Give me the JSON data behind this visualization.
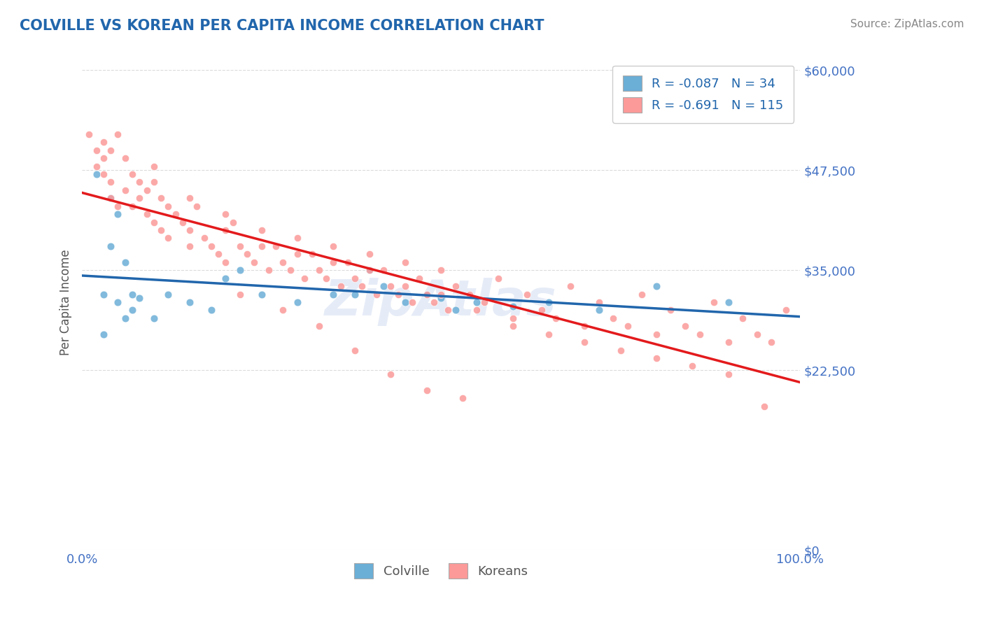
{
  "title": "COLVILLE VS KOREAN PER CAPITA INCOME CORRELATION CHART",
  "source_text": "Source: ZipAtlas.com",
  "xlabel": "",
  "ylabel": "Per Capita Income",
  "xlim": [
    0.0,
    1.0
  ],
  "ylim": [
    0,
    62000
  ],
  "yticks": [
    0,
    22500,
    35000,
    47500,
    60000
  ],
  "ytick_labels": [
    "$0",
    "$22,500",
    "$35,000",
    "$47,500",
    "$60,000"
  ],
  "xticks": [
    0.0,
    1.0
  ],
  "xtick_labels": [
    "0.0%",
    "100.0%"
  ],
  "colville_color": "#6baed6",
  "korean_color": "#fb9a99",
  "colville_line_color": "#2166ac",
  "korean_line_color": "#e31a1c",
  "R_colville": -0.087,
  "N_colville": 34,
  "R_korean": -0.691,
  "N_korean": 115,
  "title_color": "#2166ac",
  "axis_color": "#4472c4",
  "grid_color": "#cccccc",
  "colville_scatter_x": [
    0.02,
    0.04,
    0.03,
    0.05,
    0.06,
    0.04,
    0.03,
    0.05,
    0.07,
    0.06,
    0.08,
    0.07,
    0.1,
    0.12,
    0.15,
    0.18,
    0.2,
    0.22,
    0.25,
    0.3,
    0.35,
    0.38,
    0.4,
    0.42,
    0.45,
    0.48,
    0.5,
    0.52,
    0.55,
    0.6,
    0.65,
    0.72,
    0.8,
    0.9
  ],
  "colville_scatter_y": [
    47000,
    44000,
    32000,
    42000,
    29000,
    38000,
    27000,
    31000,
    30000,
    36000,
    31500,
    32000,
    29000,
    32000,
    31000,
    30000,
    34000,
    35000,
    32000,
    31000,
    32000,
    32000,
    35000,
    33000,
    31000,
    32000,
    31500,
    30000,
    31000,
    30500,
    31000,
    30000,
    33000,
    31000
  ],
  "korean_scatter_x": [
    0.01,
    0.02,
    0.02,
    0.03,
    0.03,
    0.03,
    0.04,
    0.04,
    0.04,
    0.05,
    0.05,
    0.06,
    0.06,
    0.07,
    0.07,
    0.08,
    0.08,
    0.09,
    0.09,
    0.1,
    0.1,
    0.11,
    0.11,
    0.12,
    0.12,
    0.13,
    0.14,
    0.15,
    0.15,
    0.16,
    0.17,
    0.18,
    0.19,
    0.2,
    0.2,
    0.21,
    0.22,
    0.23,
    0.24,
    0.25,
    0.26,
    0.27,
    0.28,
    0.29,
    0.3,
    0.31,
    0.32,
    0.33,
    0.34,
    0.35,
    0.36,
    0.37,
    0.38,
    0.39,
    0.4,
    0.41,
    0.42,
    0.43,
    0.44,
    0.45,
    0.46,
    0.47,
    0.48,
    0.49,
    0.5,
    0.51,
    0.52,
    0.54,
    0.56,
    0.58,
    0.6,
    0.62,
    0.64,
    0.66,
    0.68,
    0.7,
    0.72,
    0.74,
    0.76,
    0.78,
    0.8,
    0.82,
    0.84,
    0.86,
    0.88,
    0.9,
    0.92,
    0.94,
    0.96,
    0.98,
    0.1,
    0.15,
    0.2,
    0.25,
    0.3,
    0.35,
    0.4,
    0.45,
    0.5,
    0.55,
    0.6,
    0.65,
    0.7,
    0.75,
    0.8,
    0.85,
    0.9,
    0.95,
    0.22,
    0.28,
    0.33,
    0.38,
    0.43,
    0.48,
    0.53
  ],
  "korean_scatter_y": [
    52000,
    50000,
    48000,
    51000,
    49000,
    47000,
    50000,
    46000,
    44000,
    52000,
    43000,
    49000,
    45000,
    47000,
    43000,
    46000,
    44000,
    45000,
    42000,
    46000,
    41000,
    44000,
    40000,
    43000,
    39000,
    42000,
    41000,
    40000,
    38000,
    43000,
    39000,
    38000,
    37000,
    42000,
    36000,
    41000,
    38000,
    37000,
    36000,
    40000,
    35000,
    38000,
    36000,
    35000,
    39000,
    34000,
    37000,
    35000,
    34000,
    38000,
    33000,
    36000,
    34000,
    33000,
    37000,
    32000,
    35000,
    33000,
    32000,
    36000,
    31000,
    34000,
    32000,
    31000,
    35000,
    30000,
    33000,
    32000,
    31000,
    34000,
    29000,
    32000,
    30000,
    29000,
    33000,
    28000,
    31000,
    29000,
    28000,
    32000,
    27000,
    30000,
    28000,
    27000,
    31000,
    26000,
    29000,
    27000,
    26000,
    30000,
    48000,
    44000,
    40000,
    38000,
    37000,
    36000,
    35000,
    33000,
    32000,
    30000,
    28000,
    27000,
    26000,
    25000,
    24000,
    23000,
    22000,
    18000,
    32000,
    30000,
    28000,
    25000,
    22000,
    20000,
    19000
  ]
}
